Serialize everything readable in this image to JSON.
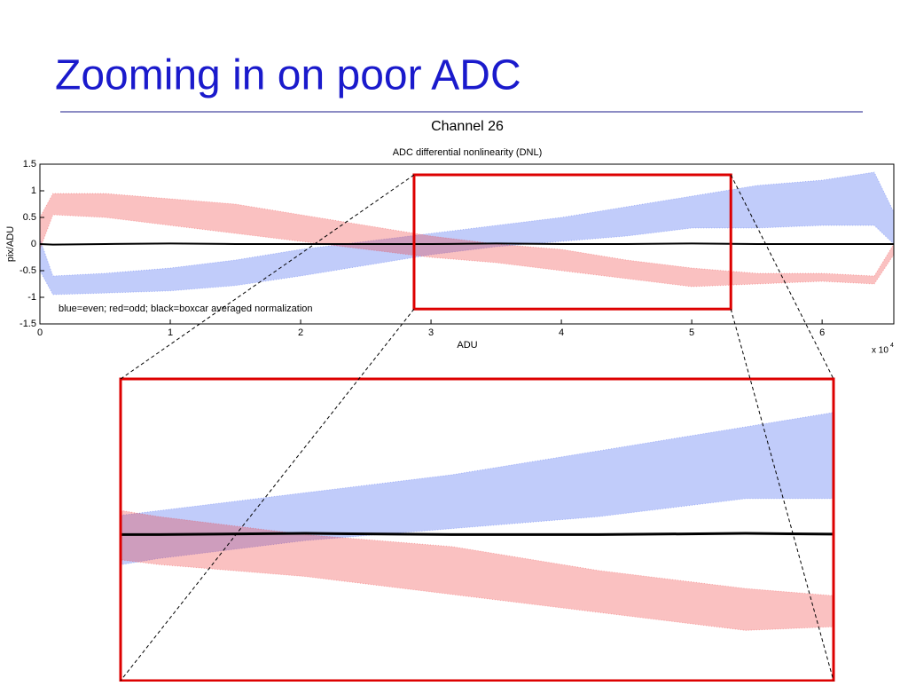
{
  "slide_title": "Zooming in on poor ADC",
  "chart_data": {
    "type": "band",
    "title": "Channel 26",
    "subtitle": "ADC differential nonlinearity (DNL)",
    "xlabel": "ADU",
    "ylabel": "pix/ADU",
    "x_multiplier": "x 10",
    "x_multiplier_exponent": "4",
    "annotation": "blue=even; red=odd; black=boxcar averaged normalization",
    "xlim": [
      0,
      6.55
    ],
    "ylim": [
      -1.5,
      1.5
    ],
    "xticks": [
      0,
      1,
      2,
      3,
      4,
      5,
      6
    ],
    "yticks": [
      -1.5,
      -1,
      -0.5,
      0,
      0.5,
      1,
      1.5
    ],
    "x": [
      0,
      0.1,
      0.5,
      1,
      1.5,
      2,
      2.5,
      3,
      3.5,
      4,
      4.5,
      5,
      5.5,
      6,
      6.4,
      6.55
    ],
    "series": [
      {
        "color": "#3355ee",
        "lower": [
          -0.5,
          -0.95,
          -0.92,
          -0.88,
          -0.78,
          -0.6,
          -0.4,
          -0.2,
          -0.05,
          0.05,
          0.15,
          0.3,
          0.3,
          0.35,
          0.35,
          0
        ],
        "upper": [
          0.1,
          -0.6,
          -0.55,
          -0.45,
          -0.3,
          -0.1,
          0.05,
          0.2,
          0.35,
          0.5,
          0.7,
          0.9,
          1.1,
          1.2,
          1.35,
          0.6
        ]
      },
      {
        "color": "#ee3333",
        "lower": [
          -0.1,
          0.55,
          0.5,
          0.35,
          0.2,
          0.05,
          -0.1,
          -0.25,
          -0.35,
          -0.5,
          -0.65,
          -0.8,
          -0.75,
          -0.7,
          -0.75,
          -0.2
        ],
        "upper": [
          0.5,
          0.95,
          0.95,
          0.85,
          0.75,
          0.55,
          0.35,
          0.15,
          0,
          -0.1,
          -0.3,
          -0.45,
          -0.55,
          -0.55,
          -0.6,
          0
        ]
      },
      {
        "color": "#000000",
        "values": [
          0,
          -0.01,
          0,
          0.01,
          0,
          0,
          0,
          0,
          0.01,
          0,
          0,
          0.01,
          0,
          0,
          0,
          0
        ]
      }
    ],
    "zoom_xlim": [
      2.87,
      5.3
    ],
    "zoom_ylim": [
      -1.22,
      1.3
    ],
    "zoom_color": "#dd0000"
  }
}
